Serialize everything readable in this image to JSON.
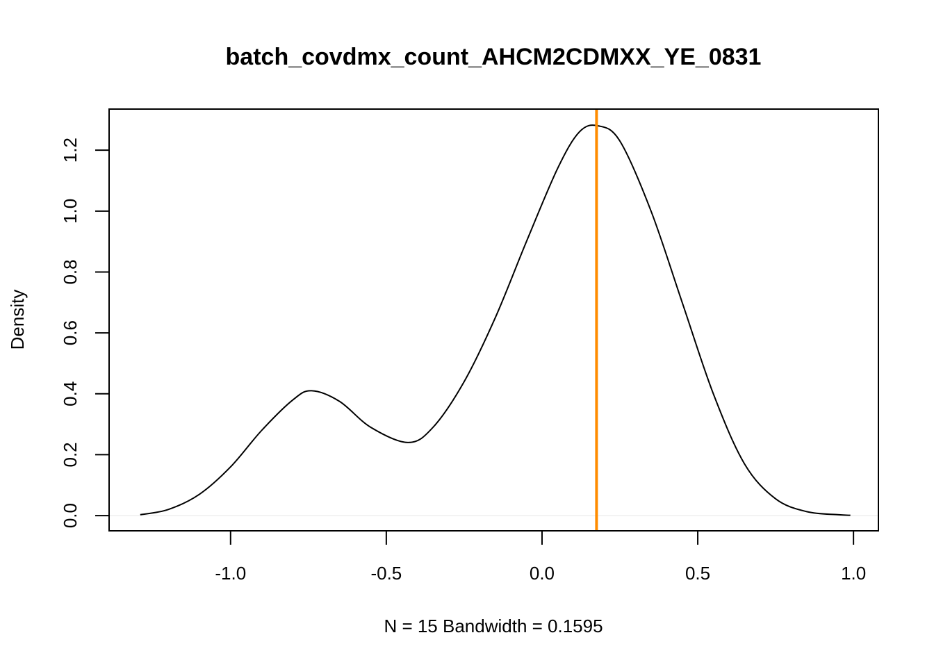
{
  "chart_data": {
    "type": "line",
    "title": "batch_covdmx_count_AHCM2CDMXX_YE_0831",
    "xlabel": "N = 15   Bandwidth = 0.1595",
    "ylabel": "Density",
    "xlim": [
      -1.39,
      1.08
    ],
    "ylim": [
      -0.05,
      1.335
    ],
    "x_ticks": [
      -1.0,
      -0.5,
      0.0,
      0.5,
      1.0
    ],
    "x_tick_labels": [
      "-1.0",
      "-0.5",
      "0.0",
      "0.5",
      "1.0"
    ],
    "y_ticks": [
      0.0,
      0.2,
      0.4,
      0.6,
      0.8,
      1.0,
      1.2
    ],
    "y_tick_labels": [
      "0.0",
      "0.2",
      "0.4",
      "0.6",
      "0.8",
      "1.0",
      "1.2"
    ],
    "series": [
      {
        "color": "#000000",
        "x": [
          -1.29,
          -1.2,
          -1.1,
          -1.0,
          -0.9,
          -0.8,
          -0.74,
          -0.65,
          -0.55,
          -0.43,
          -0.35,
          -0.25,
          -0.15,
          -0.05,
          0.05,
          0.12,
          0.18,
          0.25,
          0.35,
          0.45,
          0.55,
          0.65,
          0.75,
          0.85,
          0.95,
          0.99
        ],
        "y": [
          0.003,
          0.02,
          0.07,
          0.16,
          0.28,
          0.38,
          0.41,
          0.375,
          0.29,
          0.24,
          0.29,
          0.44,
          0.65,
          0.9,
          1.14,
          1.26,
          1.28,
          1.23,
          1.0,
          0.7,
          0.4,
          0.17,
          0.055,
          0.013,
          0.003,
          0.001
        ]
      }
    ],
    "vline": {
      "x": 0.175,
      "color": "#FF8C00"
    },
    "zero_line_color": "#e6e6e6",
    "grid": false,
    "legend": "none"
  }
}
